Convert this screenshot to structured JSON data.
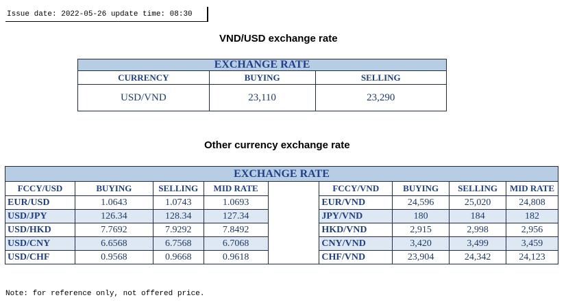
{
  "issue": {
    "text": "Issue date: 2022-05-26 update time: 08:30"
  },
  "vnd_section": {
    "heading": "VND/USD exchange rate",
    "table_title": "EXCHANGE RATE",
    "headers": [
      "CURRENCY",
      "BUYING",
      "SELLING"
    ],
    "row": [
      "USD/VND",
      "23,110",
      "23,290"
    ]
  },
  "other_section": {
    "heading": "Other currency exchange rate",
    "table_title": "EXCHANGE  RATE",
    "left_headers": [
      "FCCY/USD",
      "BUYING",
      "SELLING",
      "MID RATE"
    ],
    "right_headers": [
      "FCCY/VND",
      "BUYING",
      "SELLING",
      "MID RATE"
    ],
    "rows": [
      {
        "l": [
          "EUR/USD",
          "1.0643",
          "1.0743",
          "1.0693"
        ],
        "r": [
          "EUR/VND",
          "24,596",
          "25,020",
          "24,808"
        ]
      },
      {
        "l": [
          "USD/JPY",
          "126.34",
          "128.34",
          "127.34"
        ],
        "r": [
          "JPY/VND",
          "180",
          "184",
          "182"
        ]
      },
      {
        "l": [
          "USD/HKD",
          "7.7692",
          "7.9292",
          "7.8492"
        ],
        "r": [
          "HKD/VND",
          "2,915",
          "2,998",
          "2,956"
        ]
      },
      {
        "l": [
          "USD/CNY",
          "6.6568",
          "6.7568",
          "6.7068"
        ],
        "r": [
          "CNY/VND",
          "3,420",
          "3,499",
          "3,459"
        ]
      },
      {
        "l": [
          "USD/CHF",
          "0.9568",
          "0.9668",
          "0.9618"
        ],
        "r": [
          "CHF/VND",
          "23,904",
          "24,342",
          "24,123"
        ]
      }
    ]
  },
  "note": "Note: for reference only, not offered price."
}
